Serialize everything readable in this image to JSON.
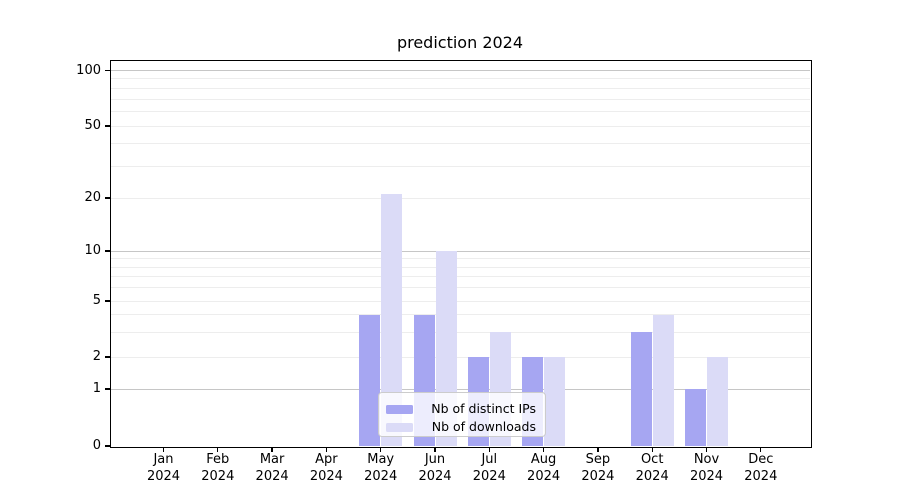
{
  "title": "prediction 2024",
  "colors": {
    "distinct_ips": "#a6a6f2",
    "downloads": "#dbdbf7",
    "grid_major": "#c6c6c6",
    "grid_minor": "#ededed",
    "spine": "#000000",
    "legend_border": "#cccccc"
  },
  "legend": {
    "items": [
      {
        "label": "Nb of distinct IPs",
        "swatch": "distinct-ips-swatch"
      },
      {
        "label": "Nb of downloads",
        "swatch": "downloads-swatch"
      }
    ],
    "position": "lower center"
  },
  "chart_data": {
    "type": "bar",
    "title": "prediction 2024",
    "categories": [
      "Jan 2024",
      "Feb 2024",
      "Mar 2024",
      "Apr 2024",
      "May 2024",
      "Jun 2024",
      "Jul 2024",
      "Aug 2024",
      "Sep 2024",
      "Oct 2024",
      "Nov 2024",
      "Dec 2024"
    ],
    "series": [
      {
        "name": "Nb of distinct IPs",
        "color": "#a6a6f2",
        "values": [
          0,
          0,
          0,
          0,
          4,
          4,
          2,
          2,
          0,
          3,
          1,
          0
        ]
      },
      {
        "name": "Nb of downloads",
        "color": "#dbdbf7",
        "values": [
          0,
          0,
          0,
          0,
          21,
          10,
          3,
          2,
          0,
          4,
          2,
          0
        ]
      }
    ],
    "xlabel": "",
    "ylabel": "",
    "yscale": "symlog",
    "y_ticks": [
      0,
      1,
      2,
      5,
      10,
      20,
      50,
      100
    ],
    "ylim": [
      0,
      115
    ],
    "grid": true,
    "legend_position": "lower center"
  }
}
